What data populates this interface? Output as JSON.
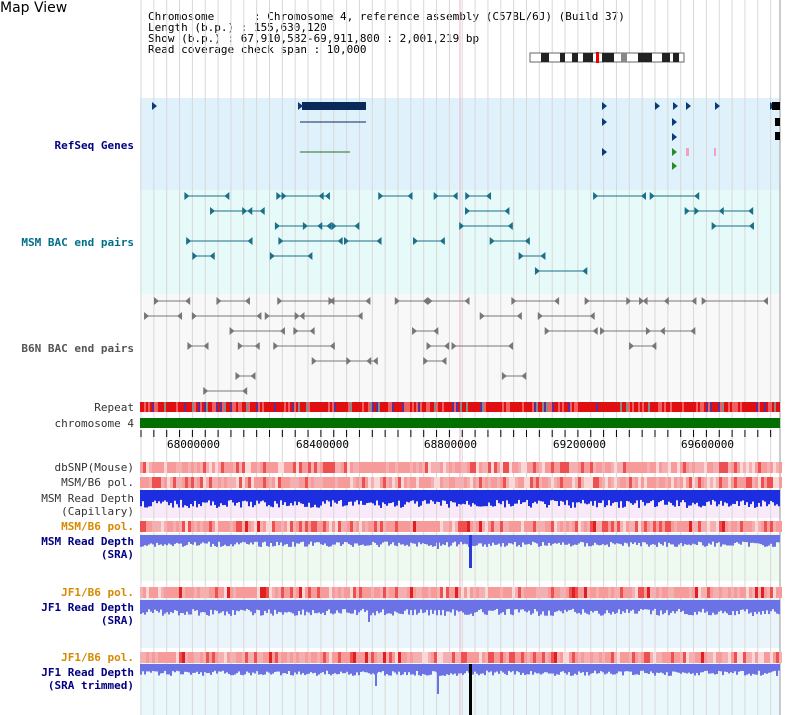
{
  "header": {
    "title": "Map View",
    "chromosome_line": "Chromosome      : Chromosome 4, reference assembly (C57BL/6J) (Build 37)",
    "length_line": "Length (b.p.) : 155,630,120",
    "show_line": "Show (b.p.) : 67,910,582-69,911,800 : 2,001,219 bp",
    "coverage_line": "Read coverage check span : 10,000"
  },
  "tracks": {
    "refseq": "RefSeq Genes",
    "msm_bac": "MSM BAC end pairs",
    "b6n_bac": "B6N BAC end pairs",
    "repeat": "Repeat",
    "chromosome": "chromosome 4",
    "dbsnp": "dbSNP(Mouse)",
    "msm_b6_pol_1": "MSM/B6 pol.",
    "msm_read_depth_cap_1": "MSM Read Depth",
    "msm_read_depth_cap_2": "(Capillary)",
    "msm_b6_pol_2": "MSM/B6 pol.",
    "msm_read_depth_sra_1": "MSM Read Depth",
    "msm_read_depth_sra_2": "(SRA)",
    "jf1_b6_pol_1": "JF1/B6 pol.",
    "jf1_read_depth_sra_1": "JF1 Read Depth",
    "jf1_read_depth_sra_2": "(SRA)",
    "jf1_b6_pol_2": "JF1/B6 pol.",
    "jf1_read_depth_trim_1": "JF1 Read Depth",
    "jf1_read_depth_trim_2": "(SRA trimmed)"
  },
  "axis": {
    "ticks": [
      "68000000",
      "68400000",
      "68800000",
      "69200000",
      "69600000"
    ]
  },
  "colors": {
    "refseq_bg": "#dff2fb",
    "msm_bg": "#e6fafa",
    "gene_dark": "#0a2a5a",
    "msm_pair": "#1b6f88",
    "b6n_pair": "#777777",
    "chromosome": "#007000",
    "read_depth_cap": "#1c2ee0",
    "read_depth_sra": "#6a72e6",
    "label_orange": "#d68a00"
  }
}
